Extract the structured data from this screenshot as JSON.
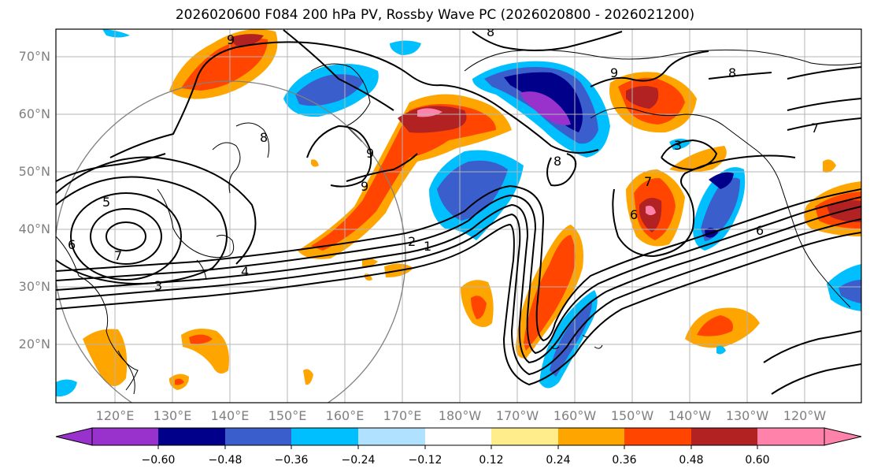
{
  "title": "2026020600 F084 200 hPa PV, Rossby Wave PC (2026020800 - 2026021200)",
  "lat_labels": [
    "70°N",
    "60°N",
    "50°N",
    "40°N",
    "30°N",
    "20°N"
  ],
  "lon_labels": [
    "120°E",
    "130°E",
    "140°E",
    "150°E",
    "160°E",
    "170°E",
    "180°W",
    "170°W",
    "160°W",
    "150°W",
    "140°W",
    "130°W",
    "120°W"
  ],
  "colorbar": {
    "ticks": [
      "−0.60",
      "−0.48",
      "−0.36",
      "−0.24",
      "−0.12",
      "0.12",
      "0.24",
      "0.36",
      "0.48",
      "0.60"
    ],
    "colors": [
      "#9932CC",
      "#00008B",
      "#3A5FCD",
      "#00BFFF",
      "#B0E2FF",
      "#FFFFFF",
      "#FFEC8B",
      "#FFA500",
      "#FF4500",
      "#B22222",
      "#FF82AB"
    ]
  },
  "contour_labels": [
    "9",
    "8",
    "8",
    "9",
    "9",
    "8",
    "5",
    "6",
    "7",
    "4",
    "3",
    "2",
    "1",
    "6",
    "7",
    "9",
    "8",
    "7",
    "6",
    "3"
  ],
  "colors": {
    "land_line": "#000000",
    "grid": "#b4b4b4",
    "circle": "#808080"
  }
}
